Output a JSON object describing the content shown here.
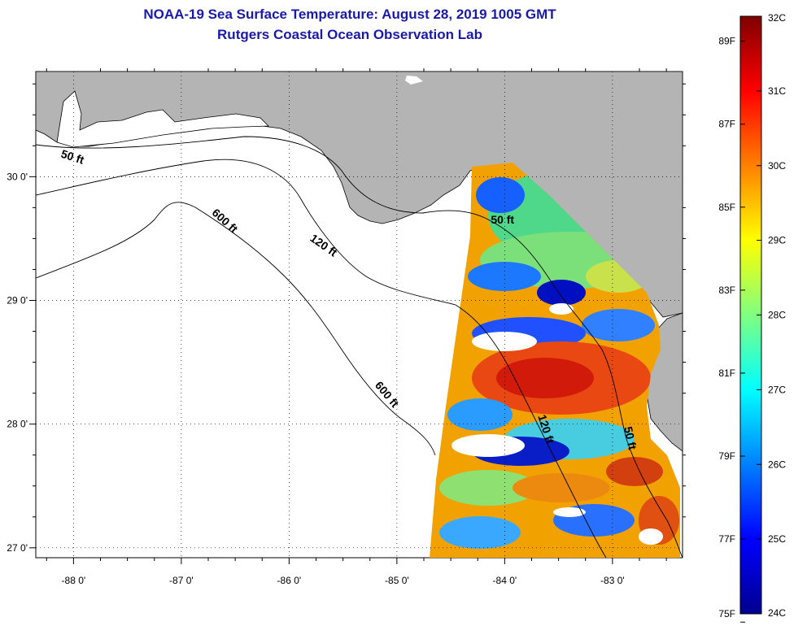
{
  "title": {
    "line1": "NOAA-19 Sea Surface Temperature:  August 28, 2019 1005 GMT",
    "line2": "Rutgers Coastal Ocean Observation Lab"
  },
  "map": {
    "lon_range": [
      -88.35,
      -82.35
    ],
    "lat_range": [
      26.92,
      30.85
    ],
    "lon_ticks": [
      {
        "value": -88,
        "label": "-88 0'"
      },
      {
        "value": -87,
        "label": "-87 0'"
      },
      {
        "value": -86,
        "label": "-86 0'"
      },
      {
        "value": -85,
        "label": "-85 0'"
      },
      {
        "value": -84,
        "label": "-84 0'"
      },
      {
        "value": -83,
        "label": "-83 0'"
      }
    ],
    "lat_ticks": [
      {
        "value": 30,
        "label": "30 0'"
      },
      {
        "value": 29,
        "label": "29 0'"
      },
      {
        "value": 28,
        "label": "28 0'"
      },
      {
        "value": 27,
        "label": "27 0'"
      }
    ],
    "grid": "dotted",
    "land_color": "#b4b4b4",
    "water_color": "#ffffff",
    "contour_labels": [
      {
        "text": "50 ft",
        "lon": -88.02,
        "lat": 30.13,
        "rotate": 18
      },
      {
        "text": "600 ft",
        "lon": -86.62,
        "lat": 29.62,
        "rotate": 42
      },
      {
        "text": "120 ft",
        "lon": -85.7,
        "lat": 29.42,
        "rotate": 35
      },
      {
        "text": "50 ft",
        "lon": -84.02,
        "lat": 29.62,
        "rotate": 0
      },
      {
        "text": "600 ft",
        "lon": -85.12,
        "lat": 28.22,
        "rotate": 50
      },
      {
        "text": "120 ft",
        "lon": -83.65,
        "lat": 27.95,
        "rotate": 72
      },
      {
        "text": "50 ft",
        "lon": -82.87,
        "lat": 27.88,
        "rotate": 78
      }
    ]
  },
  "colorbar": {
    "celsius": [
      {
        "value": 32,
        "label": "32C"
      },
      {
        "value": 31,
        "label": "31C"
      },
      {
        "value": 30,
        "label": "30C"
      },
      {
        "value": 29,
        "label": "29C"
      },
      {
        "value": 28,
        "label": "28C"
      },
      {
        "value": 27,
        "label": "27C"
      },
      {
        "value": 26,
        "label": "26C"
      },
      {
        "value": 25,
        "label": "25C"
      },
      {
        "value": 24,
        "label": "24C"
      }
    ],
    "fahrenheit": [
      {
        "value": 89,
        "label": "89F"
      },
      {
        "value": 87,
        "label": "87F"
      },
      {
        "value": 85,
        "label": "85F"
      },
      {
        "value": 83,
        "label": "83F"
      },
      {
        "value": 81,
        "label": "81F"
      },
      {
        "value": 79,
        "label": "79F"
      },
      {
        "value": 77,
        "label": "77F"
      },
      {
        "value": 75,
        "label": "75F"
      }
    ],
    "colors": [
      "#00008f",
      "#0000ff",
      "#0080ff",
      "#00ffff",
      "#80ff80",
      "#ffff00",
      "#ff8000",
      "#ff0000",
      "#800000"
    ]
  }
}
